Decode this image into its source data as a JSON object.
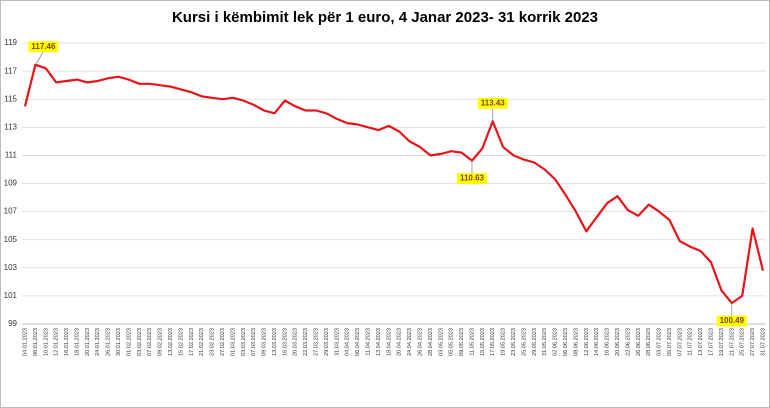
{
  "chart_data": {
    "type": "line",
    "title": "Kursi i këmbimit lek për 1 euro, 4 Janar 2023- 31 korrik 2023",
    "categories": [
      "04.01.2023",
      "06.01.2023",
      "10.01.2023",
      "12.01.2023",
      "16.01.2023",
      "18.01.2023",
      "20.01.2023",
      "24.01.2023",
      "26.01.2023",
      "30.01.2023",
      "01.02.2023",
      "03.02.2023",
      "07.02.2023",
      "09.02.2023",
      "13.02.2023",
      "15.02.2023",
      "17.02.2023",
      "21.02.2023",
      "23.02.2023",
      "27.02.2023",
      "01.03.2023",
      "03.03.2023",
      "07.03.2023",
      "09.03.2023",
      "13.03.2023",
      "16.03.2023",
      "20.03.2023",
      "22.03.2023",
      "27.03.2023",
      "29.03.2023",
      "31.03.2023",
      "04.04.2023",
      "06.04.2023",
      "11.04.2023",
      "13.04.2023",
      "18.04.2023",
      "20.04.2023",
      "24.04.2023",
      "26.04.2023",
      "28.04.2023",
      "03.05.2023",
      "05.05.2023",
      "09.05.2023",
      "11.05.2023",
      "15.05.2023",
      "17.05.2023",
      "19.05.2023",
      "23.05.2023",
      "25.05.2023",
      "29.05.2023",
      "31.05.2023",
      "02.06.2023",
      "06.06.2023",
      "08.06.2023",
      "12.06.2023",
      "14.06.2023",
      "16.06.2023",
      "20.06.2023",
      "22.06.2023",
      "26.06.2023",
      "28.06.2023",
      "03.07.2023",
      "05.07.2023",
      "07.07.2023",
      "11.07.2023",
      "13.07.2023",
      "17.07.2023",
      "19.07.2023",
      "21.07.2023",
      "25.07.2023",
      "27.07.2023",
      "31.07.2023"
    ],
    "series": [
      {
        "color": "#e8141b",
        "values": [
          114.5,
          117.46,
          117.2,
          116.2,
          116.3,
          116.4,
          116.2,
          116.3,
          116.5,
          116.6,
          116.4,
          116.1,
          116.1,
          116.0,
          115.9,
          115.7,
          115.5,
          115.2,
          115.1,
          115.0,
          115.1,
          114.9,
          114.6,
          114.2,
          114.0,
          114.9,
          114.5,
          114.2,
          114.2,
          114.0,
          113.6,
          113.3,
          113.2,
          113.0,
          112.8,
          113.1,
          112.7,
          112.0,
          111.6,
          111.0,
          111.1,
          111.3,
          111.2,
          110.63,
          111.5,
          113.43,
          111.6,
          111.0,
          110.7,
          110.5,
          110.0,
          109.3,
          108.2,
          107.0,
          105.6,
          106.6,
          107.6,
          108.1,
          107.1,
          106.7,
          107.5,
          107.0,
          106.4,
          104.9,
          104.5,
          104.2,
          103.4,
          101.4,
          100.49,
          101.0,
          105.8,
          102.8
        ],
        "value_labels": [
          null,
          "117.46",
          null,
          null,
          null,
          null,
          null,
          null,
          null,
          null,
          null,
          null,
          null,
          null,
          null,
          null,
          null,
          null,
          null,
          null,
          null,
          null,
          null,
          null,
          null,
          null,
          null,
          null,
          null,
          null,
          null,
          null,
          null,
          null,
          null,
          null,
          null,
          null,
          null,
          null,
          null,
          null,
          null,
          "110.63",
          null,
          "113.43",
          null,
          null,
          null,
          null,
          null,
          null,
          null,
          null,
          null,
          null,
          null,
          null,
          null,
          null,
          null,
          null,
          null,
          null,
          null,
          null,
          null,
          null,
          "100.49",
          null,
          null,
          null
        ]
      }
    ],
    "ylim": [
      99,
      120
    ],
    "yticks": [
      99,
      101,
      103,
      105,
      107,
      109,
      111,
      113,
      115,
      117,
      119
    ],
    "grid": true,
    "label_color": "#ffff00"
  }
}
